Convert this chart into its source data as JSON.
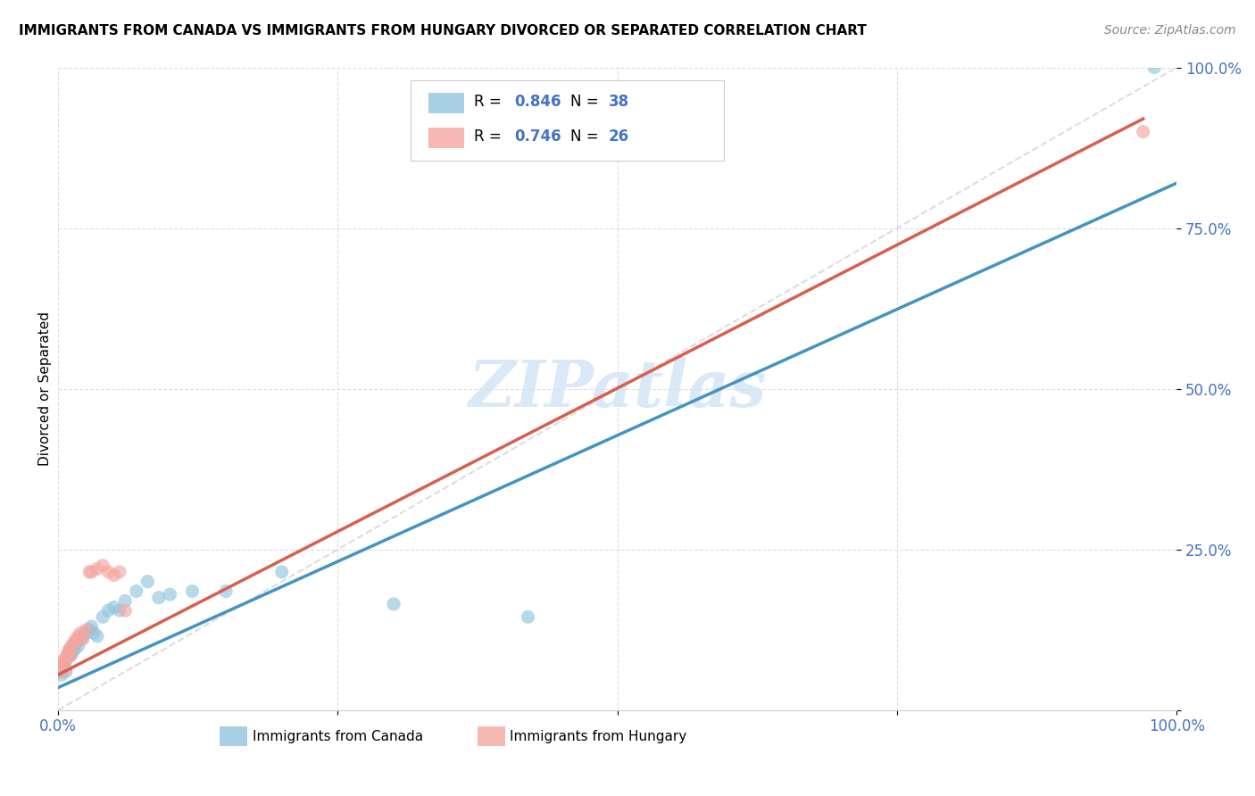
{
  "title": "IMMIGRANTS FROM CANADA VS IMMIGRANTS FROM HUNGARY DIVORCED OR SEPARATED CORRELATION CHART",
  "source": "Source: ZipAtlas.com",
  "ylabel": "Divorced or Separated",
  "xlim": [
    0.0,
    1.0
  ],
  "ylim": [
    0.0,
    1.0
  ],
  "ytick_labels": [
    "",
    "25.0%",
    "50.0%",
    "75.0%",
    "100.0%"
  ],
  "ytick_values": [
    0.0,
    0.25,
    0.5,
    0.75,
    1.0
  ],
  "xtick_positions": [
    0.0,
    0.25,
    0.5,
    0.75,
    1.0
  ],
  "canada_R": 0.846,
  "canada_N": 38,
  "hungary_R": 0.746,
  "hungary_N": 26,
  "canada_color": "#92c5de",
  "hungary_color": "#f4a6a0",
  "canada_line_color": "#4393c3",
  "hungary_line_color": "#d6604d",
  "ref_line_color": "#dddddd",
  "background_color": "#ffffff",
  "watermark_text": "ZIPatlas",
  "watermark_color": "#d0e4f5",
  "legend_text_color": "#4472c4",
  "legend_n_color": "#e87722",
  "tick_color": "#4472c4",
  "canada_points_x": [
    0.002,
    0.003,
    0.004,
    0.005,
    0.006,
    0.007,
    0.008,
    0.009,
    0.01,
    0.011,
    0.012,
    0.013,
    0.014,
    0.015,
    0.016,
    0.018,
    0.02,
    0.022,
    0.025,
    0.028,
    0.03,
    0.032,
    0.035,
    0.04,
    0.045,
    0.05,
    0.055,
    0.06,
    0.07,
    0.08,
    0.09,
    0.1,
    0.12,
    0.15,
    0.2,
    0.3,
    0.42,
    0.98
  ],
  "canada_points_y": [
    0.06,
    0.055,
    0.065,
    0.07,
    0.075,
    0.06,
    0.08,
    0.085,
    0.09,
    0.085,
    0.095,
    0.09,
    0.1,
    0.095,
    0.105,
    0.1,
    0.11,
    0.115,
    0.12,
    0.125,
    0.13,
    0.12,
    0.115,
    0.145,
    0.155,
    0.16,
    0.155,
    0.17,
    0.185,
    0.2,
    0.175,
    0.18,
    0.185,
    0.185,
    0.215,
    0.165,
    0.145,
    1.0
  ],
  "hungary_points_x": [
    0.002,
    0.003,
    0.004,
    0.005,
    0.006,
    0.007,
    0.008,
    0.009,
    0.01,
    0.011,
    0.012,
    0.014,
    0.016,
    0.018,
    0.02,
    0.022,
    0.025,
    0.028,
    0.03,
    0.035,
    0.04,
    0.045,
    0.05,
    0.055,
    0.06,
    0.97
  ],
  "hungary_points_y": [
    0.06,
    0.065,
    0.07,
    0.075,
    0.08,
    0.065,
    0.085,
    0.09,
    0.095,
    0.085,
    0.1,
    0.105,
    0.11,
    0.115,
    0.12,
    0.11,
    0.125,
    0.215,
    0.215,
    0.22,
    0.225,
    0.215,
    0.21,
    0.215,
    0.155,
    0.9
  ],
  "canada_line_x": [
    0.0,
    1.0
  ],
  "canada_line_y": [
    0.035,
    0.82
  ],
  "hungary_line_x": [
    0.0,
    0.97
  ],
  "hungary_line_y": [
    0.055,
    0.92
  ],
  "ref_line_x": [
    0.0,
    1.0
  ],
  "ref_line_y": [
    0.0,
    1.0
  ]
}
